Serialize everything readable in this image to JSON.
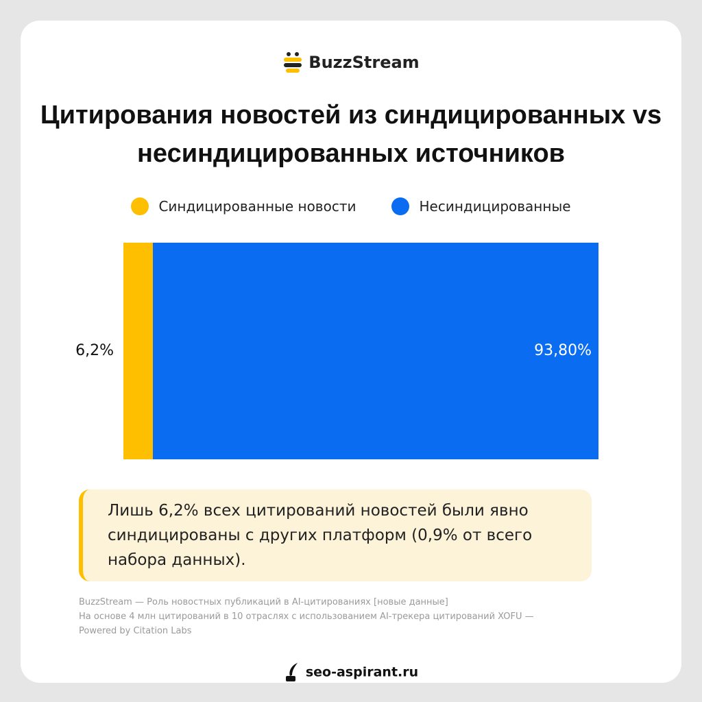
{
  "header": {
    "brand": "BuzzStream"
  },
  "chart_data": {
    "type": "stacked_bar",
    "orientation": "horizontal",
    "title": [
      "Цитирования новостей из синдицированных vs",
      "несиндицированных источников"
    ],
    "series": [
      {
        "name": "Синдицированные новости",
        "color": "#fdbf00",
        "values": [
          6.2
        ],
        "value_labels": [
          "6,2%"
        ]
      },
      {
        "name": "Несиндицированные",
        "color": "#0a6cf0",
        "values": [
          93.8
        ],
        "value_labels": [
          "93,80%"
        ]
      }
    ]
  },
  "note": "Лишь 6,2% всех цитирований новостей были явно синдицированы с других платформ (0,9% от всего набора данных).",
  "source": [
    "BuzzStream — Роль новостных публикаций в AI-цитированиях [новые данные]",
    "На основе 4 млн цитирований в 10 отраслях с использованием AI-трекера цитирований XOFU —",
    "Powered by Citation Labs"
  ],
  "footer": "seo-aspirant.ru"
}
